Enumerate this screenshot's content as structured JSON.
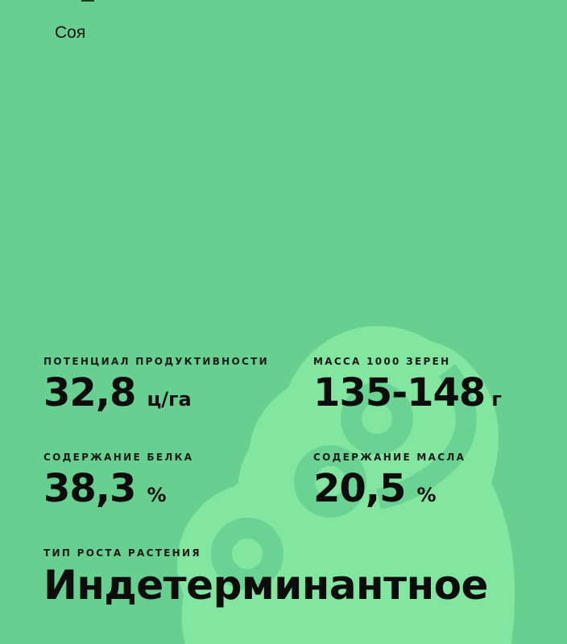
{
  "crop_name": "Соя",
  "colors": {
    "background": "#67cf90",
    "pod": "#82e6a0",
    "seed": "#6ad394"
  },
  "decor_icon": "soybean-pod-icon",
  "stats": [
    {
      "label": "ПОТЕНЦИАЛ ПРОДУКТИВНОСТИ",
      "value": "32,8",
      "unit": "ц/га"
    },
    {
      "label": "МАССА 1000 ЗЕРЕН",
      "value": "135-148",
      "unit": "г"
    },
    {
      "label": "СОДЕРЖАНИЕ БЕЛКА",
      "value": "38,3",
      "unit": "%"
    },
    {
      "label": "СОДЕРЖАНИЕ МАСЛА",
      "value": "20,5",
      "unit": "%"
    }
  ],
  "growth": {
    "label": "ТИП РОСТА РАСТЕНИЯ",
    "value": "Индетерминантное"
  }
}
